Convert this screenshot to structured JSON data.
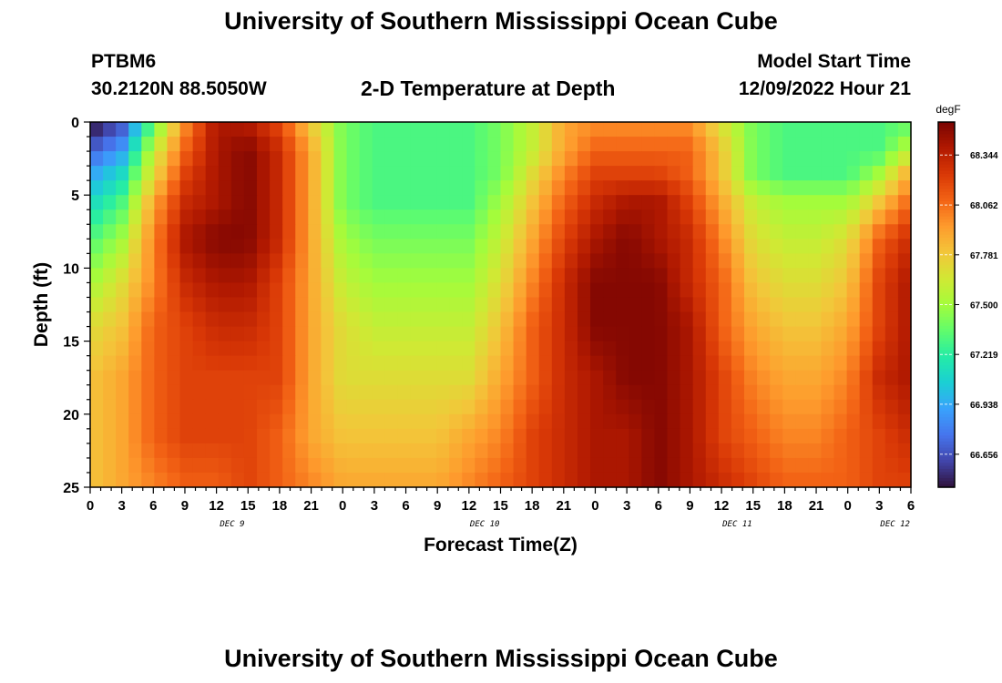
{
  "header": {
    "title": "University of Southern Mississippi Ocean Cube",
    "station_id": "PTBM6",
    "coords": "30.2120N  88.5050W",
    "subtitle": "2-D Temperature at Depth",
    "model_start_label": "Model Start Time",
    "model_start_value": "12/09/2022 Hour 21"
  },
  "footer": {
    "title": "University of Southern Mississippi Ocean Cube"
  },
  "colors": {
    "colormap": [
      "#30123b",
      "#4145ab",
      "#4675ed",
      "#39a2fc",
      "#1bcfd4",
      "#24eca6",
      "#61fc6c",
      "#a4fc3b",
      "#d1e834",
      "#f3c63a",
      "#fe9b2d",
      "#f36315",
      "#d93806",
      "#b11901",
      "#7a0402"
    ]
  },
  "chart_data": {
    "type": "heatmap",
    "title": "2-D Temperature at Depth",
    "xlabel": "Forecast Time(Z)",
    "ylabel": "Depth (ft)",
    "units": "degF",
    "ylim": [
      0,
      25
    ],
    "y_ticks": [
      0,
      5,
      10,
      15,
      20,
      25
    ],
    "x_ticks": [
      "0",
      "3",
      "6",
      "9",
      "12",
      "15",
      "18",
      "21",
      "0",
      "3",
      "6",
      "9",
      "12",
      "15",
      "18",
      "21",
      "0",
      "3",
      "6",
      "9",
      "12",
      "15",
      "18",
      "21",
      "0",
      "3",
      "6"
    ],
    "day_labels": [
      {
        "label": "DEC 9",
        "tick_index": 4.5
      },
      {
        "label": "DEC 10",
        "tick_index": 12.5
      },
      {
        "label": "DEC 11",
        "tick_index": 20.5
      },
      {
        "label": "DEC 12",
        "tick_index": 25.5
      }
    ],
    "colorbar": {
      "label": "degF",
      "range": [
        66.47,
        68.53
      ],
      "ticks": [
        "68.344",
        "68.062",
        "67.781",
        "67.500",
        "67.219",
        "66.938",
        "66.656"
      ],
      "tick_values": [
        68.344,
        68.062,
        67.781,
        67.5,
        67.219,
        66.938,
        66.656
      ]
    },
    "grid": false,
    "hours_total": 78,
    "depth_values_ft": [
      0.5,
      2,
      3.5,
      5.5,
      8,
      11,
      14,
      17.5,
      21.5,
      25
    ],
    "hour_values": [
      0,
      3,
      6,
      9,
      12,
      15,
      18,
      21,
      24,
      27,
      30,
      33,
      36,
      39,
      42,
      45,
      48,
      51,
      54,
      57,
      60,
      63,
      66,
      69,
      72,
      75,
      78
    ],
    "temperature_degF": [
      [
        66.5,
        66.7,
        67.4,
        68.0,
        68.4,
        68.4,
        68.2,
        67.8,
        67.4,
        67.3,
        67.3,
        67.3,
        67.3,
        67.4,
        67.6,
        67.9,
        68.0,
        68.0,
        68.0,
        68.0,
        67.7,
        67.4,
        67.3,
        67.3,
        67.3,
        67.3,
        67.4
      ],
      [
        66.7,
        66.9,
        67.6,
        68.1,
        68.4,
        68.5,
        68.3,
        67.9,
        67.4,
        67.3,
        67.3,
        67.3,
        67.3,
        67.4,
        67.6,
        67.9,
        68.1,
        68.1,
        68.1,
        68.1,
        67.8,
        67.4,
        67.3,
        67.3,
        67.3,
        67.3,
        67.6
      ],
      [
        66.9,
        67.1,
        67.7,
        68.2,
        68.4,
        68.5,
        68.3,
        67.9,
        67.4,
        67.3,
        67.3,
        67.3,
        67.3,
        67.4,
        67.7,
        68.0,
        68.2,
        68.2,
        68.2,
        68.1,
        67.8,
        67.4,
        67.3,
        67.3,
        67.3,
        67.5,
        67.9
      ],
      [
        67.1,
        67.3,
        67.9,
        68.3,
        68.4,
        68.5,
        68.3,
        67.9,
        67.4,
        67.3,
        67.3,
        67.3,
        67.3,
        67.5,
        67.8,
        68.1,
        68.3,
        68.4,
        68.4,
        68.2,
        67.9,
        67.6,
        67.5,
        67.5,
        67.5,
        67.8,
        68.1
      ],
      [
        67.3,
        67.5,
        68.0,
        68.4,
        68.5,
        68.5,
        68.3,
        67.9,
        67.5,
        67.4,
        67.4,
        67.4,
        67.4,
        67.6,
        67.9,
        68.2,
        68.4,
        68.5,
        68.4,
        68.3,
        68.0,
        67.7,
        67.6,
        67.6,
        67.7,
        68.1,
        68.3
      ],
      [
        67.5,
        67.7,
        68.0,
        68.3,
        68.4,
        68.4,
        68.2,
        67.9,
        67.6,
        67.5,
        67.5,
        67.5,
        67.5,
        67.7,
        68.0,
        68.3,
        68.5,
        68.5,
        68.5,
        68.3,
        68.1,
        67.8,
        67.7,
        67.7,
        67.8,
        68.2,
        68.4
      ],
      [
        67.7,
        67.8,
        68.1,
        68.2,
        68.3,
        68.3,
        68.2,
        67.9,
        67.7,
        67.6,
        67.6,
        67.6,
        67.6,
        67.8,
        68.1,
        68.3,
        68.5,
        68.5,
        68.5,
        68.4,
        68.1,
        67.9,
        67.8,
        67.8,
        67.9,
        68.2,
        68.4
      ],
      [
        67.8,
        67.9,
        68.1,
        68.2,
        68.2,
        68.2,
        68.2,
        67.9,
        67.7,
        67.7,
        67.7,
        67.7,
        67.7,
        67.9,
        68.1,
        68.3,
        68.4,
        68.5,
        68.5,
        68.4,
        68.2,
        68.0,
        67.9,
        67.9,
        68.0,
        68.3,
        68.4
      ],
      [
        67.8,
        67.9,
        68.1,
        68.2,
        68.2,
        68.2,
        68.1,
        67.9,
        67.8,
        67.8,
        67.8,
        67.8,
        67.9,
        68.0,
        68.2,
        68.3,
        68.4,
        68.4,
        68.5,
        68.4,
        68.2,
        68.1,
        68.0,
        68.0,
        68.1,
        68.2,
        68.3
      ],
      [
        67.8,
        67.9,
        68.0,
        68.1,
        68.1,
        68.2,
        68.1,
        68.0,
        67.9,
        67.9,
        67.9,
        67.9,
        68.0,
        68.1,
        68.2,
        68.3,
        68.4,
        68.4,
        68.5,
        68.4,
        68.3,
        68.2,
        68.1,
        68.1,
        68.1,
        68.2,
        68.2
      ]
    ]
  }
}
